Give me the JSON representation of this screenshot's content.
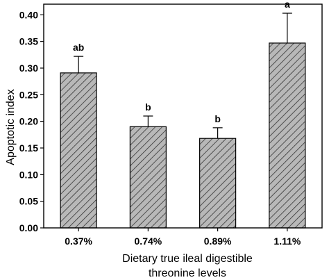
{
  "chart_data": {
    "type": "bar",
    "categories": [
      "0.37%",
      "0.74%",
      "0.89%",
      "1.11%"
    ],
    "values": [
      0.291,
      0.19,
      0.168,
      0.347
    ],
    "errors": [
      0.031,
      0.02,
      0.02,
      0.056
    ],
    "significance": [
      "ab",
      "b",
      "b",
      "a"
    ],
    "ylabel": "Apoptotic index",
    "xlabel_lines": [
      "Dietary true ileal digestible",
      "threonine levels"
    ],
    "ylim": [
      0,
      0.42
    ],
    "yticks": [
      "0.00",
      "0.05",
      "0.10",
      "0.15",
      "0.20",
      "0.25",
      "0.30",
      "0.35",
      "0.40"
    ],
    "grid": false,
    "bar_fill": "#b8b8b8",
    "hatch_color": "#333333",
    "axis_color": "#000000"
  }
}
